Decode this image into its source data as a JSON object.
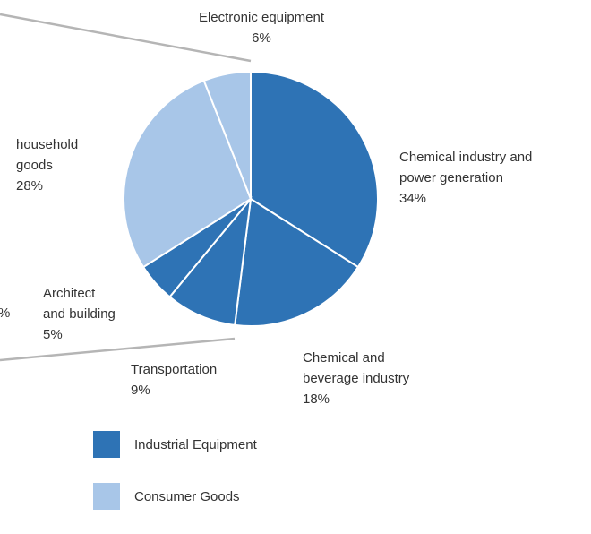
{
  "chart_data": {
    "type": "pie",
    "slices": [
      {
        "label": [
          "Chemical industry and",
          "power generation"
        ],
        "percent_label": "34%",
        "value": 34,
        "group": "Industrial Equipment"
      },
      {
        "label": [
          "Chemical and",
          "beverage industry"
        ],
        "percent_label": "18%",
        "value": 18,
        "group": "Industrial Equipment"
      },
      {
        "label": [
          "Transportation"
        ],
        "percent_label": "9%",
        "value": 9,
        "group": "Industrial Equipment"
      },
      {
        "label": [
          "Architect",
          "and building"
        ],
        "percent_label": "5%",
        "value": 5,
        "group": "Industrial Equipment"
      },
      {
        "label": [
          "household",
          "goods"
        ],
        "percent_label": "28%",
        "value": 28,
        "group": "Consumer Goods"
      },
      {
        "label": [
          "Electronic equipment"
        ],
        "percent_label": "6%",
        "value": 6,
        "group": "Consumer Goods"
      }
    ],
    "legend": [
      {
        "name": "Industrial Equipment",
        "color": "#2e73b5"
      },
      {
        "name": "Consumer Goods",
        "color": "#a8c6e8"
      }
    ],
    "legend_placement": "bottom-left",
    "partial_label_left": "%"
  }
}
